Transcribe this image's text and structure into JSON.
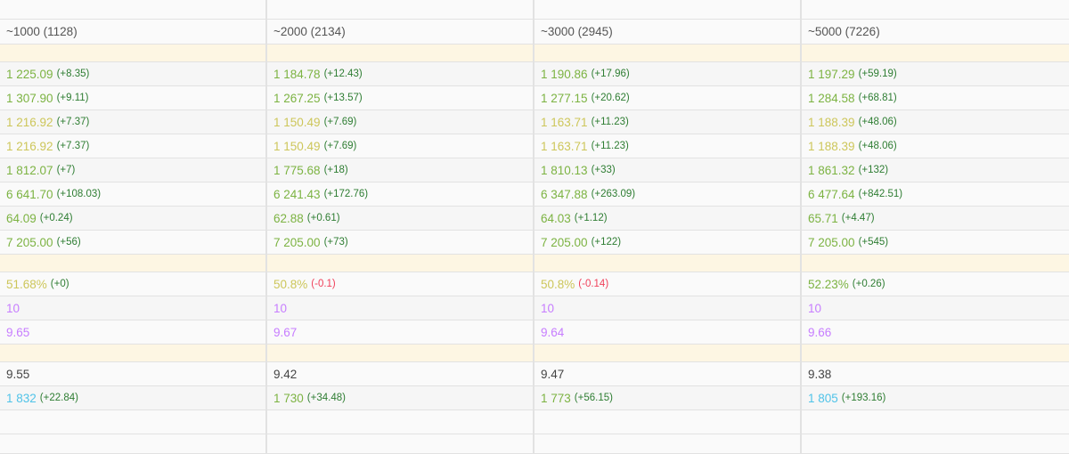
{
  "colors": {
    "green": "#7cb342",
    "yellow": "#cdc65a",
    "purple": "#c77dff",
    "cyan": "#4fc3e8",
    "dark": "#444444",
    "delta_pos": "#2e7d32",
    "delta_neg": "#f0405a"
  },
  "columns": [
    "~1000 (1128)",
    "~2000 (2134)",
    "~3000 (2945)",
    "~5000 (7226)"
  ],
  "rows": [
    {
      "type": "blank"
    },
    {
      "type": "head"
    },
    {
      "type": "sec"
    },
    {
      "type": "data",
      "cells": [
        {
          "v": "1 225.09",
          "d": "(+8.35)",
          "c": "green"
        },
        {
          "v": "1 184.78",
          "d": "(+12.43)",
          "c": "green"
        },
        {
          "v": "1 190.86",
          "d": "(+17.96)",
          "c": "green"
        },
        {
          "v": "1 197.29",
          "d": "(+59.19)",
          "c": "green"
        }
      ]
    },
    {
      "type": "data",
      "cells": [
        {
          "v": "1 307.90",
          "d": "(+9.11)",
          "c": "green"
        },
        {
          "v": "1 267.25",
          "d": "(+13.57)",
          "c": "green"
        },
        {
          "v": "1 277.15",
          "d": "(+20.62)",
          "c": "green"
        },
        {
          "v": "1 284.58",
          "d": "(+68.81)",
          "c": "green"
        }
      ]
    },
    {
      "type": "data",
      "cells": [
        {
          "v": "1 216.92",
          "d": "(+7.37)",
          "c": "yellow"
        },
        {
          "v": "1 150.49",
          "d": "(+7.69)",
          "c": "yellow"
        },
        {
          "v": "1 163.71",
          "d": "(+11.23)",
          "c": "yellow"
        },
        {
          "v": "1 188.39",
          "d": "(+48.06)",
          "c": "yellow"
        }
      ]
    },
    {
      "type": "data",
      "cells": [
        {
          "v": "1 216.92",
          "d": "(+7.37)",
          "c": "yellow"
        },
        {
          "v": "1 150.49",
          "d": "(+7.69)",
          "c": "yellow"
        },
        {
          "v": "1 163.71",
          "d": "(+11.23)",
          "c": "yellow"
        },
        {
          "v": "1 188.39",
          "d": "(+48.06)",
          "c": "yellow"
        }
      ]
    },
    {
      "type": "data",
      "cells": [
        {
          "v": "1 812.07",
          "d": "(+7)",
          "c": "green"
        },
        {
          "v": "1 775.68",
          "d": "(+18)",
          "c": "green"
        },
        {
          "v": "1 810.13",
          "d": "(+33)",
          "c": "green"
        },
        {
          "v": "1 861.32",
          "d": "(+132)",
          "c": "green"
        }
      ]
    },
    {
      "type": "data",
      "cells": [
        {
          "v": "6 641.70",
          "d": "(+108.03)",
          "c": "green"
        },
        {
          "v": "6 241.43",
          "d": "(+172.76)",
          "c": "green"
        },
        {
          "v": "6 347.88",
          "d": "(+263.09)",
          "c": "green"
        },
        {
          "v": "6 477.64",
          "d": "(+842.51)",
          "c": "green"
        }
      ]
    },
    {
      "type": "data",
      "cells": [
        {
          "v": "64.09",
          "d": "(+0.24)",
          "c": "green"
        },
        {
          "v": "62.88",
          "d": "(+0.61)",
          "c": "green"
        },
        {
          "v": "64.03",
          "d": "(+1.12)",
          "c": "green"
        },
        {
          "v": "65.71",
          "d": "(+4.47)",
          "c": "green"
        }
      ]
    },
    {
      "type": "data",
      "cells": [
        {
          "v": "7 205.00",
          "d": "(+56)",
          "c": "green"
        },
        {
          "v": "7 205.00",
          "d": "(+73)",
          "c": "green"
        },
        {
          "v": "7 205.00",
          "d": "(+122)",
          "c": "green"
        },
        {
          "v": "7 205.00",
          "d": "(+545)",
          "c": "green"
        }
      ]
    },
    {
      "type": "sec"
    },
    {
      "type": "data",
      "cells": [
        {
          "v": "51.68%",
          "d": "(+0)",
          "c": "yellow"
        },
        {
          "v": "50.8%",
          "d": "(-0.1)",
          "c": "yellow",
          "neg": true
        },
        {
          "v": "50.8%",
          "d": "(-0.14)",
          "c": "yellow",
          "neg": true
        },
        {
          "v": "52.23%",
          "d": "(+0.26)",
          "c": "green"
        }
      ]
    },
    {
      "type": "data",
      "cells": [
        {
          "v": "10",
          "c": "purple"
        },
        {
          "v": "10",
          "c": "purple"
        },
        {
          "v": "10",
          "c": "purple"
        },
        {
          "v": "10",
          "c": "purple"
        }
      ]
    },
    {
      "type": "data",
      "cells": [
        {
          "v": "9.65",
          "c": "purple"
        },
        {
          "v": "9.67",
          "c": "purple"
        },
        {
          "v": "9.64",
          "c": "purple"
        },
        {
          "v": "9.66",
          "c": "purple"
        }
      ]
    },
    {
      "type": "sec"
    },
    {
      "type": "data",
      "cells": [
        {
          "v": "9.55",
          "c": "dark"
        },
        {
          "v": "9.42",
          "c": "dark"
        },
        {
          "v": "9.47",
          "c": "dark"
        },
        {
          "v": "9.38",
          "c": "dark"
        }
      ]
    },
    {
      "type": "data",
      "cells": [
        {
          "v": "1 832",
          "d": "(+22.84)",
          "c": "cyan"
        },
        {
          "v": "1 730",
          "d": "(+34.48)",
          "c": "green"
        },
        {
          "v": "1 773",
          "d": "(+56.15)",
          "c": "green"
        },
        {
          "v": "1 805",
          "d": "(+193.16)",
          "c": "cyan"
        }
      ]
    },
    {
      "type": "data",
      "cells": [
        {},
        {},
        {},
        {}
      ]
    },
    {
      "type": "blank"
    }
  ]
}
